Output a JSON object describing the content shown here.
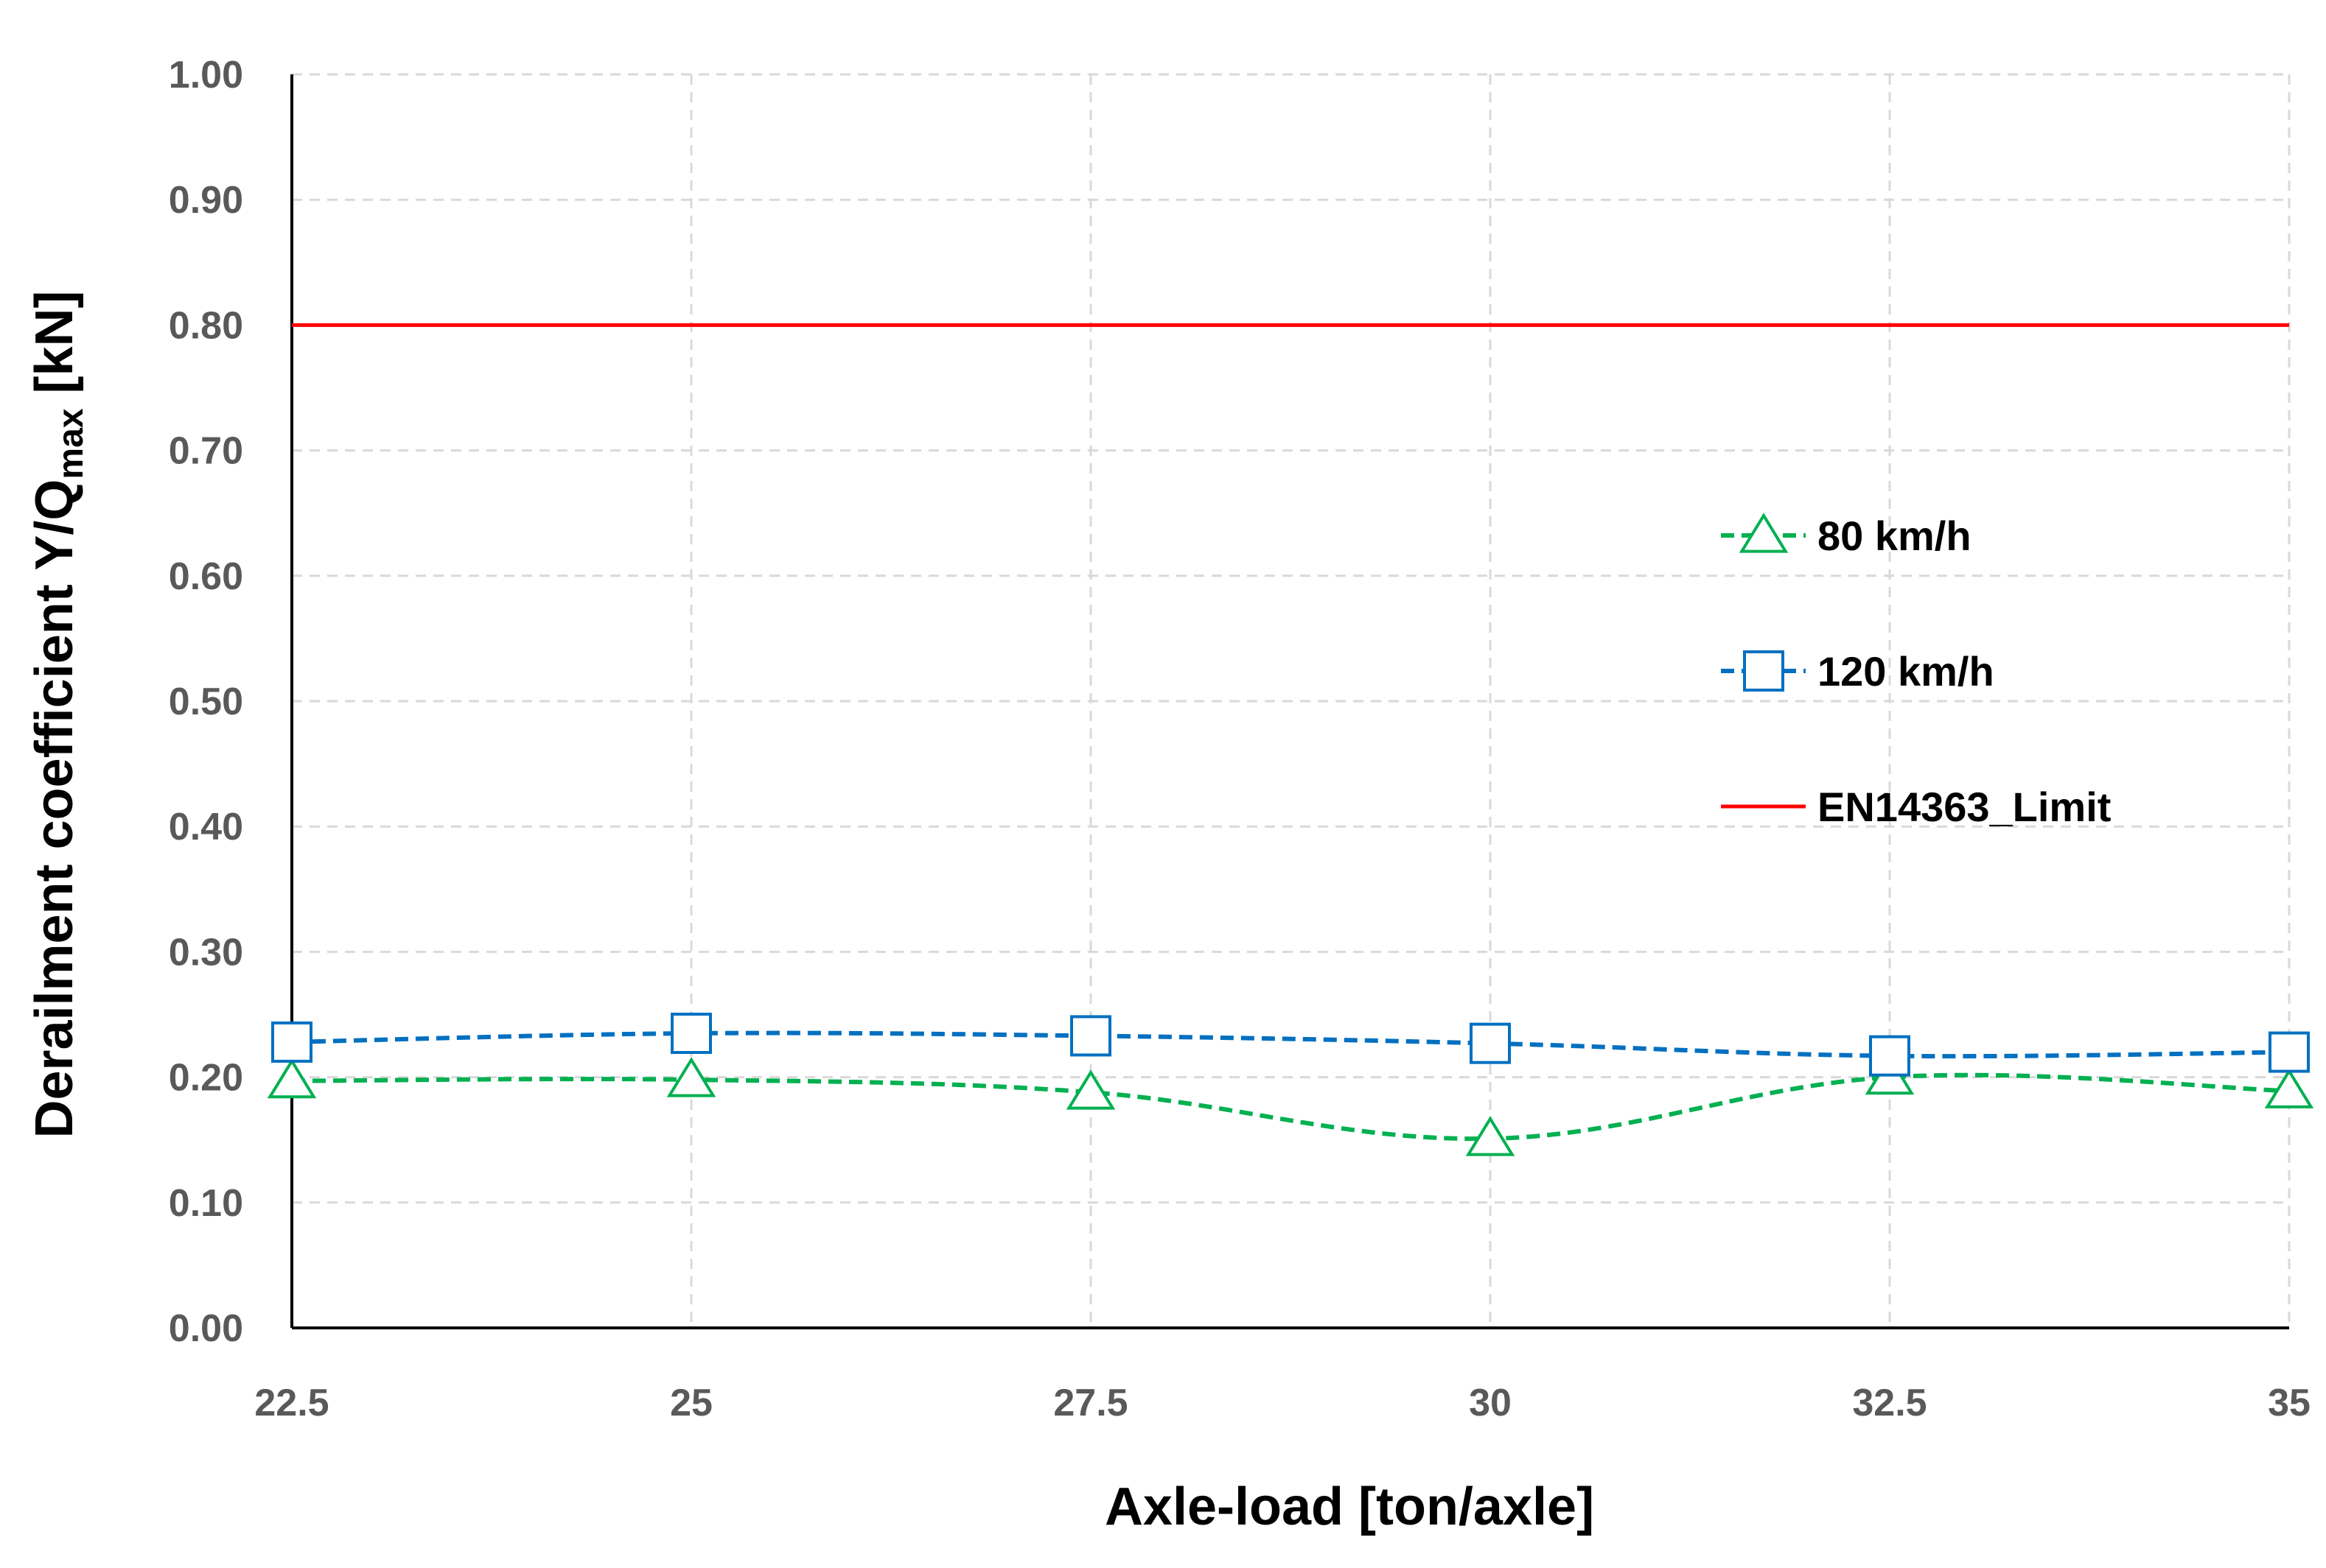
{
  "chart_data": {
    "type": "line",
    "x": [
      22.5,
      25,
      27.5,
      30,
      32.5,
      35
    ],
    "x_tick_labels": [
      "22.5",
      "25",
      "27.5",
      "30",
      "32.5",
      "35"
    ],
    "y_tick_labels": [
      "0.00",
      "0.10",
      "0.20",
      "0.30",
      "0.40",
      "0.50",
      "0.60",
      "0.70",
      "0.80",
      "0.90",
      "1.00"
    ],
    "ylim": [
      0,
      1
    ],
    "xlabel": "Axle-load [ton/axle]",
    "ylabel": {
      "prefix": "Derailment coefficient Y/Q",
      "subscript": "max",
      "suffix": " [kN]"
    },
    "grid": true,
    "legend_position": "right",
    "series": [
      {
        "name": "80 km/h",
        "values": [
          0.197,
          0.198,
          0.188,
          0.151,
          0.2,
          0.189
        ],
        "color": "#00b050",
        "marker": "triangle",
        "dash": true
      },
      {
        "name": "120 km/h",
        "values": [
          0.228,
          0.235,
          0.233,
          0.227,
          0.217,
          0.22
        ],
        "color": "#0070c0",
        "marker": "square",
        "dash": true
      },
      {
        "name": "EN14363_Limit",
        "values": [
          0.8,
          0.8,
          0.8,
          0.8,
          0.8,
          0.8
        ],
        "color": "#ff0000",
        "marker": "none",
        "dash": false
      }
    ]
  }
}
